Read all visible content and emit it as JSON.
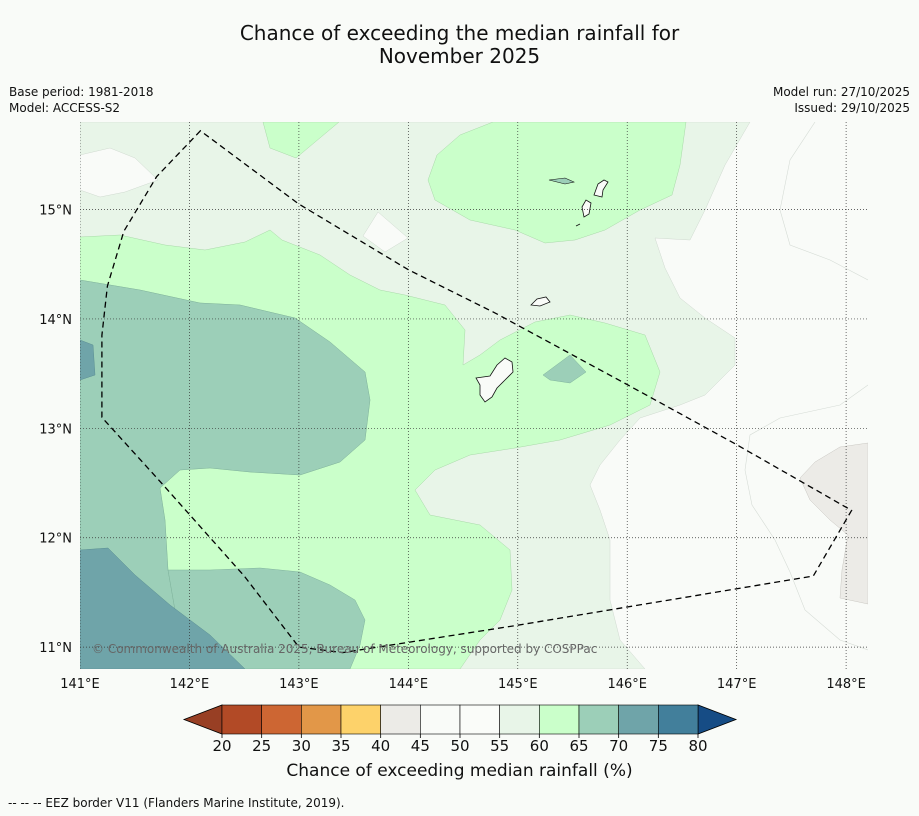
{
  "title": {
    "line1": "Chance of exceeding the median rainfall for",
    "line2": "November 2025"
  },
  "meta_left": {
    "base_period": "Base period: 1981-2018",
    "model": "Model: ACCESS-S2"
  },
  "meta_right": {
    "model_run": "Model run: 27/10/2025",
    "issued": "Issued: 29/10/2025"
  },
  "map": {
    "lon_range": [
      141.0,
      148.2
    ],
    "lat_range": [
      10.8,
      15.8
    ],
    "lat_ticks": [
      {
        "value": 15,
        "label": "15°N"
      },
      {
        "value": 14,
        "label": "14°N"
      },
      {
        "value": 13,
        "label": "13°N"
      },
      {
        "value": 12,
        "label": "12°N"
      },
      {
        "value": 11,
        "label": "11°N"
      }
    ],
    "lon_ticks": [
      {
        "value": 141,
        "label": "141°E"
      },
      {
        "value": 142,
        "label": "142°E"
      },
      {
        "value": 143,
        "label": "143°E"
      },
      {
        "value": 144,
        "label": "144°E"
      },
      {
        "value": 145,
        "label": "145°E"
      },
      {
        "value": 146,
        "label": "146°E"
      },
      {
        "value": 147,
        "label": "147°E"
      },
      {
        "value": 148,
        "label": "148°E"
      }
    ],
    "copyright": "© Commonwealth of Australia 2025, Bureau of Meteorology, supported by COSPPac",
    "eez_border": [
      [
        142.1,
        15.72
      ],
      [
        141.7,
        15.3
      ],
      [
        141.4,
        14.8
      ],
      [
        141.25,
        14.3
      ],
      [
        141.2,
        13.85
      ],
      [
        141.2,
        13.1
      ],
      [
        141.7,
        12.55
      ],
      [
        142.5,
        11.65
      ],
      [
        143.0,
        11.0
      ],
      [
        143.4,
        10.95
      ],
      [
        145.0,
        11.2
      ],
      [
        146.5,
        11.45
      ],
      [
        147.7,
        11.65
      ],
      [
        148.05,
        12.25
      ],
      [
        147.0,
        12.85
      ],
      [
        146.0,
        13.4
      ],
      [
        144.8,
        14.05
      ],
      [
        144.0,
        14.45
      ],
      [
        143.0,
        15.05
      ],
      [
        142.1,
        15.72
      ]
    ]
  },
  "colorbar": {
    "label": "Chance of exceeding median rainfall (%)",
    "ticks": [
      "20",
      "25",
      "30",
      "35",
      "40",
      "45",
      "50",
      "55",
      "60",
      "65",
      "70",
      "75",
      "80"
    ],
    "bins": [
      "#b24a26",
      "#cd6633",
      "#e29748",
      "#fdd26a",
      "#ecebe7",
      "#f9fbf8",
      "#fafcf9",
      "#e8f5e8",
      "#caffca",
      "#9ccfb8",
      "#6fa4a9",
      "#427f9b"
    ],
    "under_color": "#983f24",
    "over_color": "#164c85"
  },
  "footnote": "--  --  -- EEZ border V11 (Flanders Marine Institute, 2019).",
  "colors": {
    "background": "#f9fbf8",
    "p55_60": "#e8f5e8",
    "p60_65": "#caffca",
    "p65_70": "#9ccfb8",
    "p70_75": "#6fa4a9",
    "p75_80": "#427f9b",
    "p40_45": "#ecebe7"
  }
}
